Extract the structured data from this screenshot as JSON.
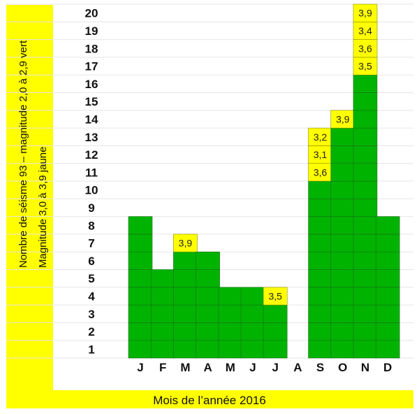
{
  "chart_data": {
    "type": "bar",
    "title": "",
    "xlabel": "Mois de l’année 2016",
    "ylabel_line1": "Nombre de séisme 93 – magnitude 2,0 à 2,9 vert",
    "ylabel_line2": "Magnitude 3,0 à 3,9 jaune",
    "categories": [
      "J",
      "F",
      "M",
      "A",
      "M",
      "J",
      "J",
      "A",
      "S",
      "O",
      "N",
      "D"
    ],
    "y_ticks": [
      "1",
      "2",
      "3",
      "4",
      "5",
      "6",
      "7",
      "8",
      "9",
      "10",
      "11",
      "12",
      "13",
      "14",
      "15",
      "16",
      "17",
      "18",
      "19",
      "20"
    ],
    "ylim": [
      0,
      20
    ],
    "series": [
      {
        "name": "magnitude 2,0 à 2,9",
        "color": "#00b300",
        "values": [
          8,
          5,
          6,
          6,
          4,
          4,
          3,
          0,
          10,
          13,
          16,
          8
        ]
      },
      {
        "name": "magnitude 3,0 à 3,9",
        "color": "#ffff00",
        "values": [
          0,
          0,
          1,
          0,
          0,
          0,
          1,
          0,
          3,
          1,
          4,
          0
        ]
      }
    ],
    "magnitudes": [
      [],
      [],
      [
        "3,9"
      ],
      [],
      [],
      [],
      [
        "3,5"
      ],
      [],
      [
        "3,6",
        "3,1",
        "3,2"
      ],
      [
        "3,9"
      ],
      [
        "3,5",
        "3,6",
        "3,4",
        "3,9"
      ],
      []
    ],
    "grid": true,
    "legend": "none"
  },
  "colors": {
    "green": "#00b300",
    "yellow": "#ffff00",
    "frame": "#ffff00",
    "grid": "#e6e6e6"
  }
}
